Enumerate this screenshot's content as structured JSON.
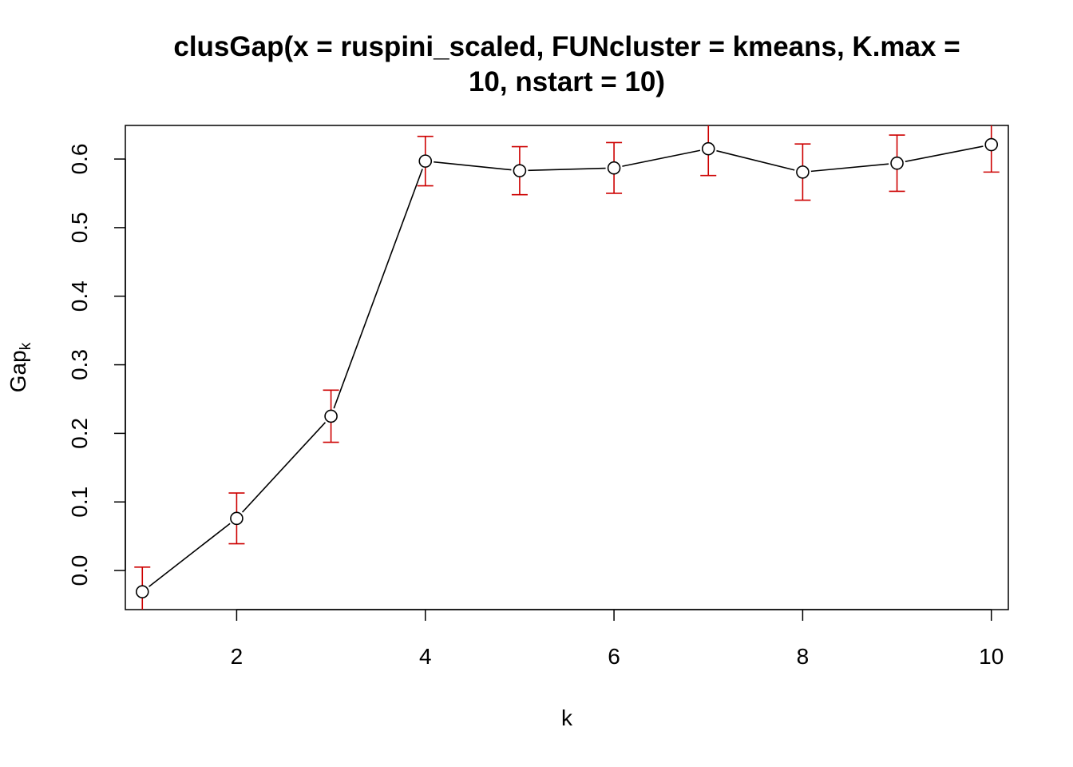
{
  "chart_data": {
    "type": "line",
    "title": [
      "clusGap(x = ruspini_scaled, FUNcluster = kmeans, K.max =",
      "10, nstart = 10)"
    ],
    "xlabel": "k",
    "ylabel": "Gap",
    "ylabel_subscript": "k",
    "xlim": [
      0.82,
      10.18
    ],
    "ylim": [
      -0.057,
      0.649
    ],
    "x_ticks": [
      2,
      4,
      6,
      8,
      10
    ],
    "x_tick_labels": [
      "2",
      "4",
      "6",
      "8",
      "10"
    ],
    "y_ticks": [
      0.0,
      0.1,
      0.2,
      0.3,
      0.4,
      0.5,
      0.6
    ],
    "y_tick_labels": [
      "0.0",
      "0.1",
      "0.2",
      "0.3",
      "0.4",
      "0.5",
      "0.6"
    ],
    "grid": false,
    "series": [
      {
        "x": [
          1,
          2,
          3,
          4,
          5,
          6,
          7,
          8,
          9,
          10
        ],
        "values": [
          -0.031,
          0.076,
          0.225,
          0.597,
          0.583,
          0.587,
          0.615,
          0.581,
          0.594,
          0.621
        ],
        "error": [
          0.036,
          0.037,
          0.038,
          0.036,
          0.035,
          0.037,
          0.039,
          0.041,
          0.041,
          0.04
        ]
      }
    ],
    "colors": {
      "line": "#000000",
      "points": "#000000",
      "error_bars": "#CD0000"
    }
  }
}
